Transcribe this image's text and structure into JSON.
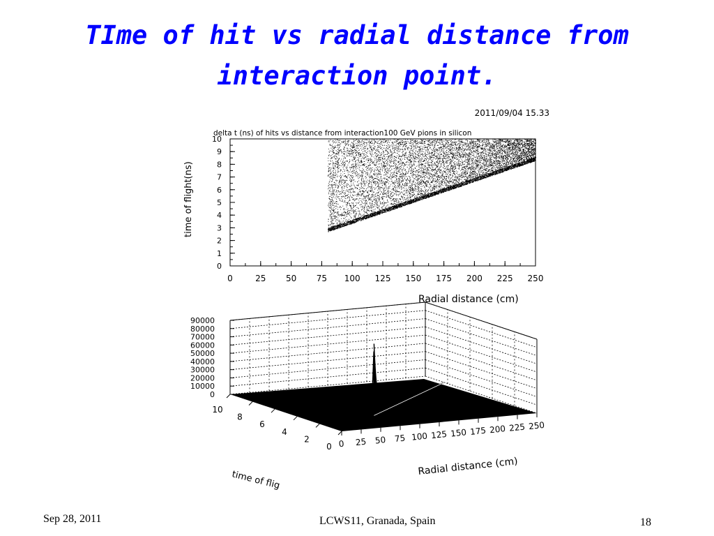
{
  "slide": {
    "title_line1": "TIme of hit vs radial distance from",
    "title_line2": "interaction point.",
    "footer_left": "Sep 28, 2011",
    "footer_center": "LCWS11, Granada, Spain",
    "footer_right": "18"
  },
  "chart_data": [
    {
      "type": "scatter",
      "timestamp": "2011/09/04   15.33",
      "title": "delta t (ns)  of hits vs distance from interaction100 GeV pions in silicon",
      "xlabel": "Radial distance (cm)",
      "ylabel": "time of flight(ns)",
      "xlim": [
        0,
        250
      ],
      "ylim": [
        0,
        10
      ],
      "xticks": [
        0,
        25,
        50,
        75,
        100,
        125,
        150,
        175,
        200,
        225,
        250
      ],
      "yticks": [
        0,
        1,
        2,
        3,
        4,
        5,
        6,
        7,
        8,
        9,
        10
      ],
      "grid": false,
      "region": {
        "x_min": 80,
        "x_max": 250,
        "lower_edge": [
          [
            80,
            2.7
          ],
          [
            250,
            8.3
          ]
        ],
        "y_max": 10
      }
    },
    {
      "type": "surface",
      "zticks": [
        0,
        10000,
        20000,
        30000,
        40000,
        50000,
        60000,
        70000,
        80000,
        90000
      ],
      "xticks": [
        0,
        25,
        50,
        75,
        100,
        125,
        150,
        175,
        200,
        225,
        250
      ],
      "yticks": [
        0,
        2,
        4,
        6,
        8,
        10
      ],
      "xlabel": "Radial distance (cm)",
      "ylabel": "time of flig",
      "zlim": [
        0,
        90000
      ],
      "peak": {
        "x": 80,
        "y": 2.7,
        "z": 78000
      }
    }
  ]
}
